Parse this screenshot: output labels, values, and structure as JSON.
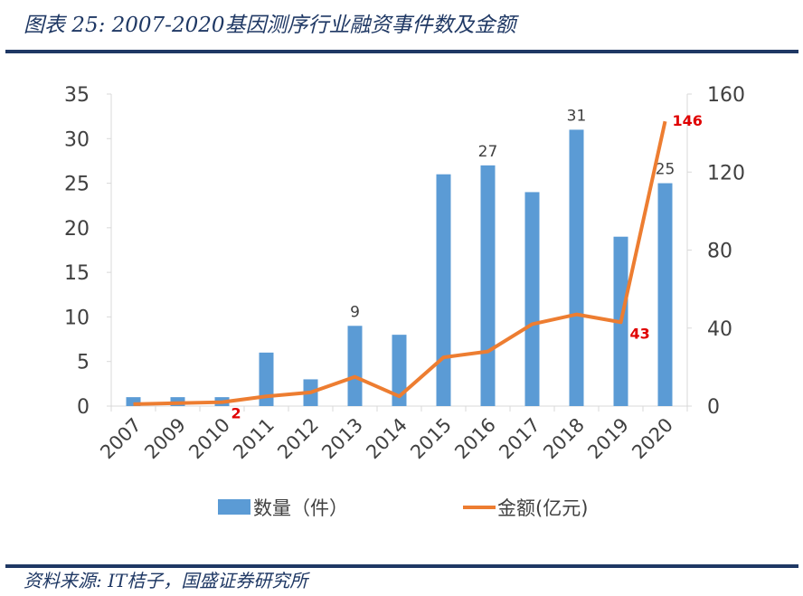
{
  "header": {
    "title": "图表 25:  2007-2020基因测序行业融资事件数及金额"
  },
  "footer": {
    "source": "资料来源: IT桔子，国盛证券研究所"
  },
  "colors": {
    "bar": "#5b9bd5",
    "line": "#ed7d31",
    "line_label": "#e00000",
    "title": "#1f3864"
  },
  "chart_data": {
    "type": "bar+line",
    "title": "2007-2020基因测序行业融资事件数及金额",
    "categories": [
      "2007",
      "2009",
      "2010",
      "2011",
      "2012",
      "2013",
      "2014",
      "2015",
      "2016",
      "2017",
      "2018",
      "2019",
      "2020"
    ],
    "series": [
      {
        "name": "数量（件）",
        "type": "bar",
        "axis": "left",
        "values": [
          1,
          1,
          1,
          6,
          3,
          9,
          8,
          26,
          27,
          24,
          31,
          19,
          25
        ],
        "labels": {
          "2013": "9",
          "2016": "27",
          "2018": "31",
          "2020": "25"
        }
      },
      {
        "name": "金额(亿元)",
        "type": "line",
        "axis": "right",
        "values": [
          1,
          1.5,
          2,
          5,
          7,
          15,
          5,
          25,
          28,
          42,
          47,
          43,
          146
        ],
        "labels": {
          "2010": "2",
          "2019": "43",
          "2020": "146"
        }
      }
    ],
    "left_axis": {
      "ylim": [
        0,
        35
      ],
      "ticks": [
        "0",
        "5",
        "10",
        "15",
        "20",
        "25",
        "30",
        "35"
      ]
    },
    "right_axis": {
      "ylim": [
        0,
        160
      ],
      "ticks": [
        "0",
        "40",
        "80",
        "120",
        "160"
      ]
    },
    "legend": "bottom",
    "grid": false
  }
}
